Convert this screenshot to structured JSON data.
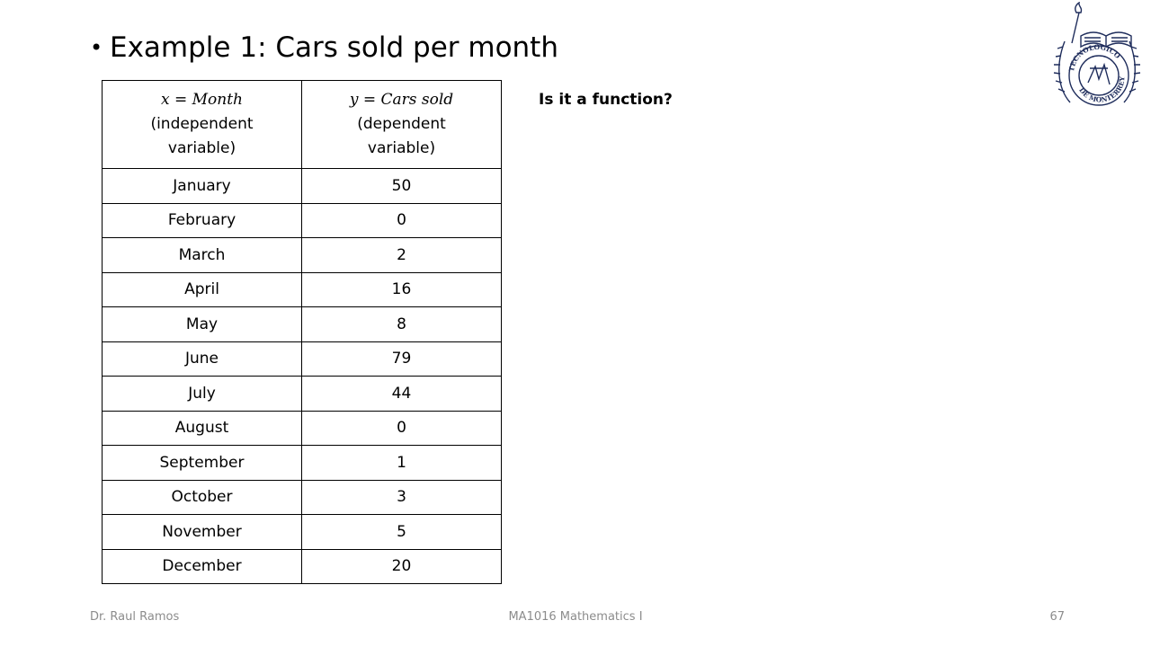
{
  "slide": {
    "title": "Example 1: Cars sold per month",
    "bullet": "•",
    "question": "Is it a function?"
  },
  "table": {
    "headers": [
      {
        "math": "x = Month",
        "desc": "(independent variable)"
      },
      {
        "math": "y = Cars sold",
        "desc": "(dependent variable)"
      }
    ],
    "rows": [
      {
        "month": "January",
        "cars": "50"
      },
      {
        "month": "February",
        "cars": "0"
      },
      {
        "month": "March",
        "cars": "2"
      },
      {
        "month": "April",
        "cars": "16"
      },
      {
        "month": "May",
        "cars": "8"
      },
      {
        "month": "June",
        "cars": "79"
      },
      {
        "month": "July",
        "cars": "44"
      },
      {
        "month": "August",
        "cars": "0"
      },
      {
        "month": "September",
        "cars": "1"
      },
      {
        "month": "October",
        "cars": "3"
      },
      {
        "month": "November",
        "cars": "5"
      },
      {
        "month": "December",
        "cars": "20"
      }
    ]
  },
  "logo": {
    "icon": "tec-de-monterrey-seal-icon",
    "text_top": "TECNOLOGICO",
    "text_bottom": "DE MONTERREY",
    "color": "#1f2d5c"
  },
  "footer": {
    "author": "Dr. Raul Ramos",
    "course": "MA1016 Mathematics I",
    "page": "67"
  }
}
